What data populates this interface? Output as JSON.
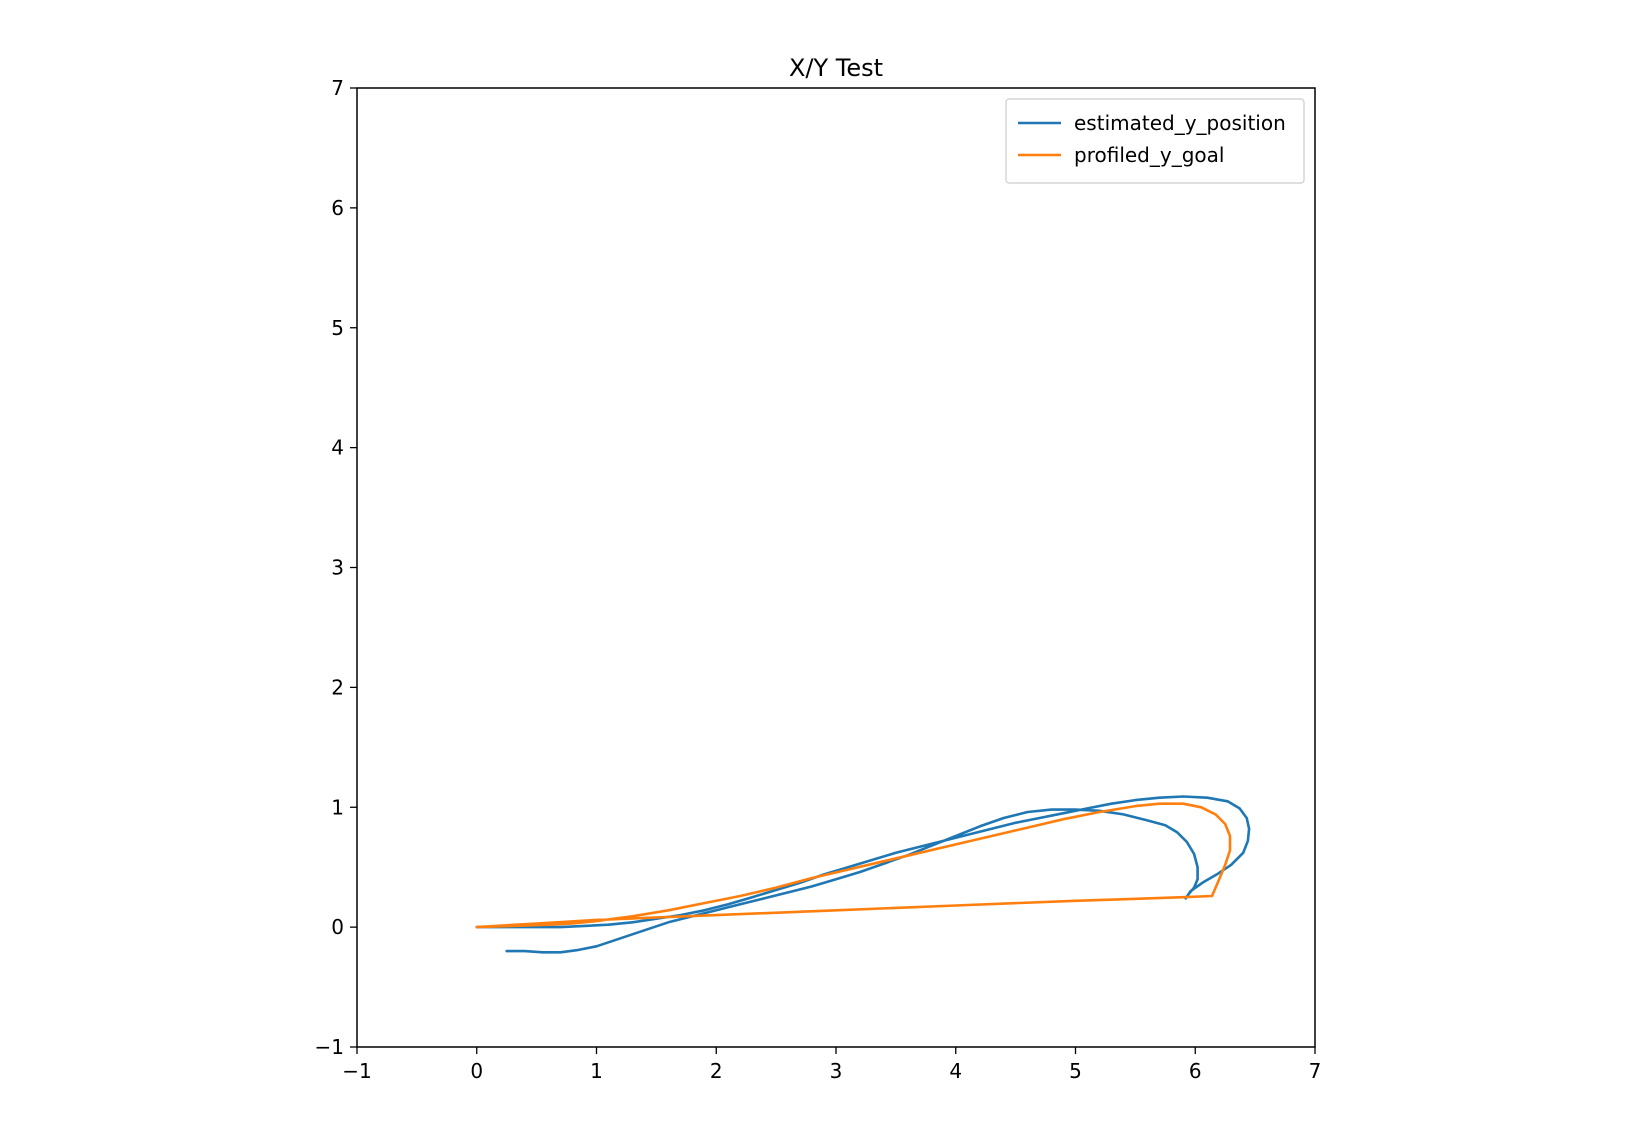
{
  "chart_data": {
    "type": "line",
    "title": "X/Y Test",
    "xlabel": "",
    "ylabel": "",
    "xlim": [
      -1,
      7
    ],
    "ylim": [
      -1,
      7
    ],
    "xticks": [
      -1,
      0,
      1,
      2,
      3,
      4,
      5,
      6,
      7
    ],
    "yticks": [
      -1,
      0,
      1,
      2,
      3,
      4,
      5,
      6,
      7
    ],
    "xtick_labels": [
      "−1",
      "0",
      "1",
      "2",
      "3",
      "4",
      "5",
      "6",
      "7"
    ],
    "ytick_labels": [
      "−1",
      "0",
      "1",
      "2",
      "3",
      "4",
      "5",
      "6",
      "7"
    ],
    "grid": false,
    "legend_position": "top-right",
    "series": [
      {
        "name": "estimated_y_position",
        "color": "#1f77b4",
        "x": [
          0.25,
          0.4,
          0.55,
          0.7,
          0.85,
          1.0,
          1.15,
          1.3,
          1.45,
          1.6,
          1.8,
          2.0,
          2.2,
          2.4,
          2.6,
          2.8,
          3.0,
          3.2,
          3.4,
          3.6,
          3.8,
          4.0,
          4.2,
          4.4,
          4.6,
          4.8,
          5.0,
          5.2,
          5.4,
          5.6,
          5.75,
          5.85,
          5.93,
          5.99,
          6.02,
          6.02,
          5.99,
          5.94,
          5.92,
          5.96,
          6.06,
          6.18,
          6.3,
          6.4,
          6.44,
          6.45,
          6.43,
          6.37,
          6.27,
          6.1,
          5.9,
          5.7,
          5.5,
          5.3,
          5.1,
          4.9,
          4.7,
          4.5,
          4.3,
          4.1,
          3.9,
          3.7,
          3.5,
          3.3,
          3.1,
          2.9,
          2.7,
          2.5,
          2.3,
          2.1,
          1.9,
          1.7,
          1.5,
          1.3,
          1.1,
          0.9,
          0.7,
          0.5,
          0.3,
          0.1,
          0.0
        ],
        "y": [
          -0.2,
          -0.2,
          -0.21,
          -0.21,
          -0.19,
          -0.16,
          -0.11,
          -0.06,
          -0.01,
          0.04,
          0.09,
          0.14,
          0.19,
          0.24,
          0.29,
          0.34,
          0.4,
          0.46,
          0.53,
          0.6,
          0.68,
          0.76,
          0.84,
          0.91,
          0.96,
          0.98,
          0.98,
          0.97,
          0.94,
          0.89,
          0.85,
          0.79,
          0.71,
          0.61,
          0.5,
          0.4,
          0.33,
          0.27,
          0.24,
          0.3,
          0.37,
          0.44,
          0.52,
          0.62,
          0.72,
          0.82,
          0.91,
          0.99,
          1.05,
          1.08,
          1.09,
          1.08,
          1.06,
          1.03,
          0.99,
          0.95,
          0.91,
          0.87,
          0.82,
          0.77,
          0.72,
          0.67,
          0.62,
          0.56,
          0.5,
          0.44,
          0.37,
          0.31,
          0.25,
          0.19,
          0.14,
          0.1,
          0.07,
          0.04,
          0.02,
          0.01,
          0.0,
          0.0,
          0.0,
          0.0,
          0.0
        ]
      },
      {
        "name": "profiled_y_goal",
        "color": "#ff7f0e",
        "x": [
          0.0,
          0.3,
          0.6,
          0.8,
          1.0,
          1.3,
          1.6,
          1.9,
          2.2,
          2.5,
          2.8,
          3.1,
          3.4,
          3.7,
          4.0,
          4.3,
          4.6,
          4.9,
          5.2,
          5.5,
          5.7,
          5.9,
          6.05,
          6.17,
          6.25,
          6.29,
          6.29,
          6.25,
          6.2,
          6.14,
          5.9,
          5.0,
          4.0,
          3.0,
          2.0,
          1.0,
          0.5,
          0.0
        ],
        "y": [
          0.0,
          0.01,
          0.02,
          0.03,
          0.05,
          0.09,
          0.14,
          0.2,
          0.26,
          0.33,
          0.41,
          0.48,
          0.55,
          0.62,
          0.69,
          0.76,
          0.83,
          0.9,
          0.96,
          1.01,
          1.03,
          1.03,
          1.0,
          0.94,
          0.86,
          0.76,
          0.64,
          0.52,
          0.4,
          0.26,
          0.25,
          0.22,
          0.18,
          0.14,
          0.1,
          0.06,
          0.03,
          0.0
        ]
      }
    ]
  }
}
